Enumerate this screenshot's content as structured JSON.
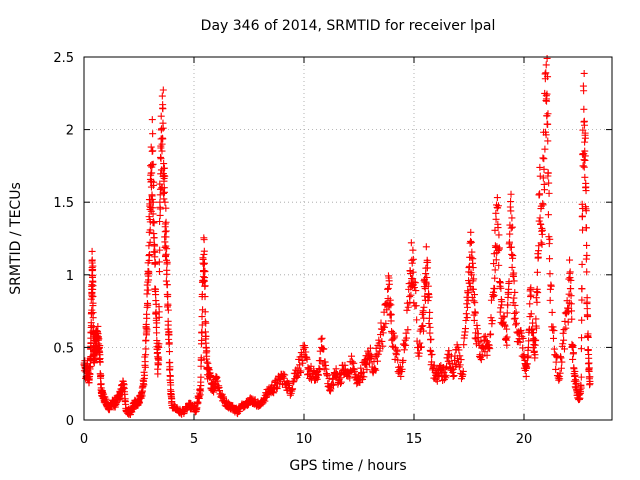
{
  "chart_data": {
    "type": "scatter",
    "title": "Day 346 of 2014, SRMTID for receiver lpal",
    "xlabel": "GPS time / hours",
    "ylabel": "SRMTID / TECUs",
    "xlim": [
      0,
      24
    ],
    "ylim": [
      0,
      2.5
    ],
    "x_ticks": [
      0,
      5,
      10,
      15,
      20
    ],
    "x_tick_labels": [
      "0",
      "5",
      "10",
      "15",
      "20"
    ],
    "y_ticks": [
      0,
      0.5,
      1,
      1.5,
      2,
      2.5
    ],
    "y_tick_labels": [
      "0",
      "0.5",
      "1",
      "1.5",
      "2",
      "2.5"
    ],
    "grid": true,
    "marker": "+",
    "color": "#ff0000",
    "series": [
      {
        "name": "SRMTID",
        "points": [
          [
            0.0,
            0.38
          ],
          [
            0.1,
            0.3
          ],
          [
            0.15,
            0.35
          ],
          [
            0.2,
            0.28
          ],
          [
            0.25,
            0.3
          ],
          [
            0.3,
            0.42
          ],
          [
            0.32,
            0.6
          ],
          [
            0.35,
            0.9
          ],
          [
            0.37,
            1.05
          ],
          [
            0.4,
            0.95
          ],
          [
            0.42,
            0.6
          ],
          [
            0.45,
            0.4
          ],
          [
            0.5,
            0.55
          ],
          [
            0.55,
            0.5
          ],
          [
            0.6,
            0.58
          ],
          [
            0.65,
            0.55
          ],
          [
            0.7,
            0.5
          ],
          [
            0.75,
            0.3
          ],
          [
            0.8,
            0.2
          ],
          [
            0.9,
            0.15
          ],
          [
            1.0,
            0.12
          ],
          [
            1.1,
            0.08
          ],
          [
            1.2,
            0.1
          ],
          [
            1.3,
            0.12
          ],
          [
            1.4,
            0.1
          ],
          [
            1.5,
            0.14
          ],
          [
            1.6,
            0.16
          ],
          [
            1.7,
            0.2
          ],
          [
            1.8,
            0.25
          ],
          [
            1.9,
            0.08
          ],
          [
            2.0,
            0.06
          ],
          [
            2.1,
            0.05
          ],
          [
            2.2,
            0.08
          ],
          [
            2.3,
            0.12
          ],
          [
            2.4,
            0.1
          ],
          [
            2.5,
            0.14
          ],
          [
            2.6,
            0.15
          ],
          [
            2.7,
            0.25
          ],
          [
            2.8,
            0.45
          ],
          [
            2.85,
            0.7
          ],
          [
            2.9,
            0.95
          ],
          [
            2.95,
            1.2
          ],
          [
            3.0,
            1.45
          ],
          [
            3.05,
            1.7
          ],
          [
            3.1,
            1.85
          ],
          [
            3.15,
            1.5
          ],
          [
            3.2,
            1.2
          ],
          [
            3.25,
            0.9
          ],
          [
            3.3,
            0.6
          ],
          [
            3.35,
            0.35
          ],
          [
            3.4,
            0.5
          ],
          [
            3.45,
            1.5
          ],
          [
            3.5,
            1.8
          ],
          [
            3.55,
            1.9
          ],
          [
            3.6,
            2.01
          ],
          [
            3.65,
            1.6
          ],
          [
            3.7,
            1.35
          ],
          [
            3.75,
            1.1
          ],
          [
            3.8,
            0.85
          ],
          [
            3.85,
            0.6
          ],
          [
            3.9,
            0.35
          ],
          [
            3.95,
            0.18
          ],
          [
            4.0,
            0.1
          ],
          [
            4.2,
            0.08
          ],
          [
            4.4,
            0.05
          ],
          [
            4.6,
            0.07
          ],
          [
            4.8,
            0.1
          ],
          [
            5.0,
            0.08
          ],
          [
            5.1,
            0.06
          ],
          [
            5.2,
            0.15
          ],
          [
            5.3,
            0.2
          ],
          [
            5.35,
            0.6
          ],
          [
            5.4,
            0.95
          ],
          [
            5.45,
            1.14
          ],
          [
            5.5,
            0.85
          ],
          [
            5.55,
            0.5
          ],
          [
            5.6,
            0.35
          ],
          [
            5.7,
            0.3
          ],
          [
            5.8,
            0.25
          ],
          [
            5.9,
            0.22
          ],
          [
            6.0,
            0.3
          ],
          [
            6.2,
            0.18
          ],
          [
            6.4,
            0.12
          ],
          [
            6.6,
            0.1
          ],
          [
            6.8,
            0.08
          ],
          [
            7.0,
            0.06
          ],
          [
            7.2,
            0.1
          ],
          [
            7.4,
            0.12
          ],
          [
            7.6,
            0.14
          ],
          [
            7.8,
            0.12
          ],
          [
            8.0,
            0.1
          ],
          [
            8.2,
            0.15
          ],
          [
            8.4,
            0.2
          ],
          [
            8.6,
            0.22
          ],
          [
            8.8,
            0.25
          ],
          [
            9.0,
            0.3
          ],
          [
            9.2,
            0.25
          ],
          [
            9.4,
            0.2
          ],
          [
            9.6,
            0.32
          ],
          [
            9.8,
            0.38
          ],
          [
            10.0,
            0.45
          ],
          [
            10.2,
            0.35
          ],
          [
            10.4,
            0.3
          ],
          [
            10.6,
            0.28
          ],
          [
            10.8,
            0.5
          ],
          [
            11.0,
            0.35
          ],
          [
            11.2,
            0.2
          ],
          [
            11.4,
            0.32
          ],
          [
            11.6,
            0.28
          ],
          [
            11.8,
            0.35
          ],
          [
            12.0,
            0.3
          ],
          [
            12.2,
            0.4
          ],
          [
            12.4,
            0.25
          ],
          [
            12.6,
            0.32
          ],
          [
            12.8,
            0.38
          ],
          [
            13.0,
            0.45
          ],
          [
            13.2,
            0.35
          ],
          [
            13.4,
            0.55
          ],
          [
            13.6,
            0.6
          ],
          [
            13.8,
            0.9
          ],
          [
            13.9,
            0.8
          ],
          [
            14.0,
            0.6
          ],
          [
            14.2,
            0.45
          ],
          [
            14.4,
            0.3
          ],
          [
            14.6,
            0.55
          ],
          [
            14.8,
            0.85
          ],
          [
            14.9,
            1.1
          ],
          [
            15.0,
            0.95
          ],
          [
            15.2,
            0.5
          ],
          [
            15.4,
            0.65
          ],
          [
            15.5,
            0.95
          ],
          [
            15.6,
            1.1
          ],
          [
            15.7,
            0.7
          ],
          [
            15.8,
            0.4
          ],
          [
            16.0,
            0.28
          ],
          [
            16.2,
            0.35
          ],
          [
            16.4,
            0.3
          ],
          [
            16.6,
            0.45
          ],
          [
            16.8,
            0.35
          ],
          [
            17.0,
            0.5
          ],
          [
            17.2,
            0.3
          ],
          [
            17.4,
            0.8
          ],
          [
            17.5,
            1.05
          ],
          [
            17.6,
            1.12
          ],
          [
            17.7,
            0.9
          ],
          [
            17.8,
            0.6
          ],
          [
            18.0,
            0.45
          ],
          [
            18.2,
            0.55
          ],
          [
            18.4,
            0.5
          ],
          [
            18.6,
            0.85
          ],
          [
            18.7,
            1.2
          ],
          [
            18.8,
            1.46
          ],
          [
            18.9,
            0.95
          ],
          [
            19.0,
            0.7
          ],
          [
            19.2,
            0.55
          ],
          [
            19.3,
            0.9
          ],
          [
            19.4,
            1.44
          ],
          [
            19.5,
            1.0
          ],
          [
            19.6,
            0.7
          ],
          [
            19.8,
            0.6
          ],
          [
            20.0,
            0.45
          ],
          [
            20.1,
            0.3
          ],
          [
            20.2,
            0.5
          ],
          [
            20.3,
            0.85
          ],
          [
            20.4,
            0.6
          ],
          [
            20.5,
            0.45
          ],
          [
            20.6,
            0.9
          ],
          [
            20.7,
            1.55
          ],
          [
            20.8,
            1.3
          ],
          [
            20.9,
            1.8
          ],
          [
            21.0,
            2.2
          ],
          [
            21.05,
            2.49
          ],
          [
            21.1,
            1.7
          ],
          [
            21.2,
            0.9
          ],
          [
            21.4,
            0.45
          ],
          [
            21.6,
            0.3
          ],
          [
            21.8,
            0.55
          ],
          [
            22.0,
            0.75
          ],
          [
            22.1,
            1.02
          ],
          [
            22.2,
            0.5
          ],
          [
            22.3,
            0.3
          ],
          [
            22.4,
            0.2
          ],
          [
            22.5,
            0.15
          ],
          [
            22.6,
            0.22
          ],
          [
            22.65,
            1.4
          ],
          [
            22.7,
            2.3
          ],
          [
            22.75,
            2.03
          ],
          [
            22.8,
            1.6
          ],
          [
            22.85,
            1.02
          ],
          [
            22.9,
            0.58
          ],
          [
            22.95,
            0.35
          ],
          [
            23.0,
            0.25
          ]
        ]
      }
    ]
  }
}
